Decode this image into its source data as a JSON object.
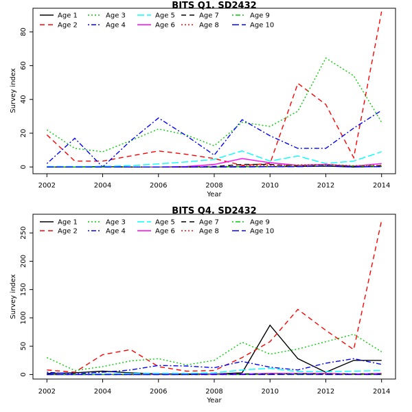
{
  "chart_data": [
    {
      "type": "line",
      "title": "BITS Q1. SD2432",
      "xlabel": "Year",
      "ylabel": "Survey index",
      "xlim": [
        2001.5,
        2014.5
      ],
      "ylim": [
        -4,
        94
      ],
      "x_ticks": [
        2002,
        2004,
        2006,
        2008,
        2010,
        2012,
        2014
      ],
      "y_ticks": [
        0,
        20,
        40,
        60,
        80
      ],
      "legend_position": "top",
      "x": [
        2002,
        2003,
        2004,
        2005,
        2006,
        2007,
        2008,
        2009,
        2010,
        2011,
        2012,
        2013,
        2014
      ],
      "series": [
        {
          "name": "Age 1",
          "color": "#000000",
          "dash": "solid",
          "values": [
            0,
            0,
            0.3,
            0,
            0,
            0,
            0,
            0.3,
            0.2,
            0.3,
            0.5,
            0,
            0.3
          ]
        },
        {
          "name": "Age 2",
          "color": "#ff0000",
          "dash": "dash",
          "values": [
            19,
            3.5,
            3.5,
            6.5,
            9.5,
            7.5,
            5,
            1,
            2,
            49.5,
            37,
            5.5,
            92
          ]
        },
        {
          "name": "Age 3",
          "color": "#00cd00",
          "dash": "dot",
          "values": [
            22,
            11,
            9,
            15.5,
            22.5,
            19,
            12.5,
            26.5,
            24,
            33,
            64.5,
            54,
            26.5
          ]
        },
        {
          "name": "Age 4",
          "color": "#0000ff",
          "dash": "dashdot",
          "values": [
            2,
            17,
            0,
            15.5,
            29,
            18.5,
            7,
            28,
            18.5,
            11,
            11,
            23,
            33.5
          ]
        },
        {
          "name": "Age 5",
          "color": "#00ffff",
          "dash": "longdash",
          "values": [
            0.3,
            0.3,
            0.3,
            0.8,
            1.8,
            3,
            4.5,
            9.5,
            3.5,
            6.5,
            2,
            3.5,
            9
          ]
        },
        {
          "name": "Age 6",
          "color": "#ff00ff",
          "dash": "solid",
          "values": [
            0,
            0,
            0,
            0,
            0,
            0.3,
            1.5,
            5,
            2.5,
            1,
            1.5,
            0.5,
            2
          ]
        },
        {
          "name": "Age 7",
          "color": "#000000",
          "dash": "dash",
          "values": [
            0,
            0,
            0,
            0,
            0,
            0,
            0.3,
            1.5,
            1.5,
            0.5,
            0.8,
            0.3,
            0.8
          ]
        },
        {
          "name": "Age 8",
          "color": "#ff0000",
          "dash": "dot",
          "values": [
            0,
            0,
            0,
            0,
            0,
            0,
            0.2,
            0.5,
            1,
            1.2,
            1.5,
            0.8,
            1
          ]
        },
        {
          "name": "Age 9",
          "color": "#00cd00",
          "dash": "dashdot",
          "values": [
            0,
            0,
            0,
            0,
            0,
            0,
            0,
            0.2,
            0.3,
            0.5,
            0.8,
            0.5,
            0.5
          ]
        },
        {
          "name": "Age 10",
          "color": "#0000ff",
          "dash": "longdash",
          "values": [
            0,
            0,
            0,
            0,
            0,
            0,
            0,
            0,
            0.2,
            0.2,
            0.5,
            0.2,
            0.2
          ]
        }
      ]
    },
    {
      "type": "line",
      "title": "BITS Q4. SD2432",
      "xlabel": "Year",
      "ylabel": "Survey index",
      "xlim": [
        2001.5,
        2014.5
      ],
      "ylim": [
        -8,
        283
      ],
      "x_ticks": [
        2002,
        2004,
        2006,
        2008,
        2010,
        2012,
        2014
      ],
      "y_ticks": [
        0,
        50,
        100,
        150,
        200,
        250
      ],
      "legend_position": "top",
      "x": [
        2002,
        2003,
        2004,
        2005,
        2006,
        2007,
        2008,
        2009,
        2010,
        2011,
        2012,
        2013,
        2014
      ],
      "series": [
        {
          "name": "Age 1",
          "color": "#000000",
          "dash": "solid",
          "values": [
            2,
            3,
            6,
            3,
            1,
            1,
            1,
            3,
            87,
            28,
            4,
            25,
            25
          ]
        },
        {
          "name": "Age 2",
          "color": "#ff0000",
          "dash": "dash",
          "values": [
            8,
            4,
            35,
            44,
            14,
            6,
            7,
            30,
            58,
            115,
            78,
            44,
            272
          ]
        },
        {
          "name": "Age 3",
          "color": "#00cd00",
          "dash": "dot",
          "values": [
            30,
            7,
            14,
            24,
            28,
            17,
            25,
            57,
            36,
            45,
            58,
            71,
            40
          ]
        },
        {
          "name": "Age 4",
          "color": "#0000ff",
          "dash": "dashdot",
          "values": [
            4,
            1,
            4,
            8,
            16,
            15,
            12,
            23,
            13,
            8,
            20,
            28,
            18
          ]
        },
        {
          "name": "Age 5",
          "color": "#00ffff",
          "dash": "longdash",
          "values": [
            0,
            0,
            1,
            2,
            2,
            2,
            3,
            8,
            11,
            5,
            5,
            6,
            7
          ]
        },
        {
          "name": "Age 6",
          "color": "#ff00ff",
          "dash": "solid",
          "values": [
            0,
            0,
            0,
            0,
            0,
            0,
            1,
            1,
            2,
            2,
            2,
            1,
            2
          ]
        },
        {
          "name": "Age 7",
          "color": "#000000",
          "dash": "dash",
          "values": [
            0,
            0,
            0,
            0,
            0,
            0,
            0,
            1,
            1,
            1,
            1,
            1,
            1
          ]
        },
        {
          "name": "Age 8",
          "color": "#ff0000",
          "dash": "dot",
          "values": [
            0,
            0,
            0,
            0,
            0,
            0,
            0,
            0,
            1,
            1,
            1,
            1,
            1
          ]
        },
        {
          "name": "Age 9",
          "color": "#00cd00",
          "dash": "dashdot",
          "values": [
            0,
            0,
            0,
            0,
            0,
            0,
            0,
            0,
            0,
            1,
            0,
            0,
            0
          ]
        },
        {
          "name": "Age 10",
          "color": "#0000ff",
          "dash": "longdash",
          "values": [
            0,
            0,
            0,
            0,
            0,
            0,
            0,
            0,
            0,
            0,
            0,
            0,
            0
          ]
        }
      ]
    }
  ]
}
